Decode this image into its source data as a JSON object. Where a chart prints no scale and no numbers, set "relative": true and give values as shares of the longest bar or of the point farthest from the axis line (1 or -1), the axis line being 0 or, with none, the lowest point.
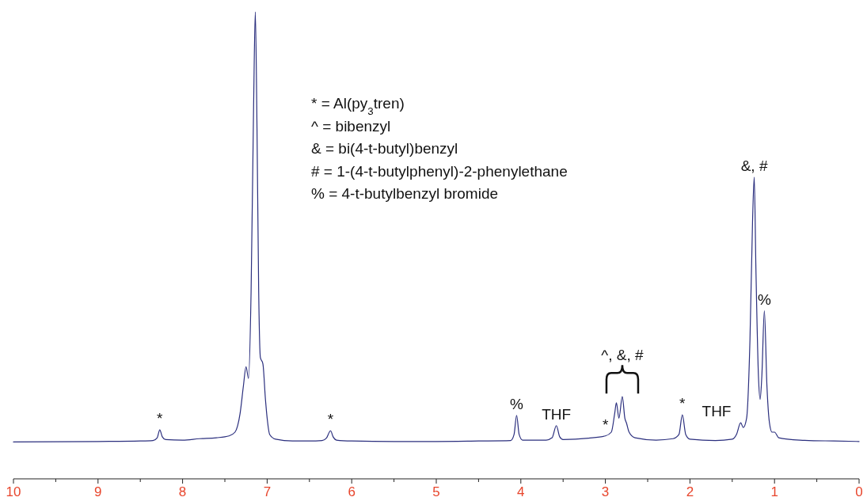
{
  "chart_data": {
    "type": "line",
    "relative": true,
    "xlim": [
      10,
      0
    ],
    "xticks": [
      10,
      {
        "value": 9.5,
        "label": null
      },
      9,
      {
        "value": 8.5,
        "label": null
      },
      8,
      {
        "value": 7.5,
        "label": null
      },
      7,
      {
        "value": 6.5,
        "label": null
      },
      6,
      {
        "value": 5.5,
        "label": null
      },
      5,
      {
        "value": 4.5,
        "label": null
      },
      4,
      {
        "value": 3.5,
        "label": null
      },
      3,
      {
        "value": 2.5,
        "label": null
      },
      2,
      {
        "value": 1.5,
        "label": null
      },
      1,
      {
        "value": 0.5,
        "label": null
      },
      0
    ],
    "x": [
      10,
      9,
      8.5,
      8.35,
      8.3,
      8.27,
      8.24,
      8.2,
      8.0,
      7.8,
      7.6,
      7.45,
      7.38,
      7.32,
      7.28,
      7.25,
      7.22,
      7.19,
      7.16,
      7.14,
      7.12,
      7.1,
      7.08,
      7.05,
      7.02,
      7.0,
      6.97,
      6.9,
      6.7,
      6.5,
      6.35,
      6.3,
      6.25,
      6.22,
      6.18,
      6.0,
      5.5,
      5.0,
      4.5,
      4.12,
      4.08,
      4.05,
      4.02,
      3.98,
      3.7,
      3.63,
      3.58,
      3.54,
      3.5,
      3.2,
      3.0,
      2.93,
      2.89,
      2.87,
      2.84,
      2.8,
      2.77,
      2.75,
      2.72,
      2.65,
      2.4,
      2.2,
      2.13,
      2.09,
      2.05,
      2.0,
      1.7,
      1.5,
      1.45,
      1.4,
      1.37,
      1.33,
      1.29,
      1.26,
      1.24,
      1.22,
      1.19,
      1.17,
      1.15,
      1.12,
      1.09,
      1.06,
      1.03,
      1.0,
      0.95,
      0.7,
      0.3,
      0
    ],
    "series": [
      {
        "color": "#2b2f7e",
        "values": [
          0.079,
          0.08,
          0.081,
          0.082,
          0.088,
          0.105,
          0.09,
          0.084,
          0.083,
          0.086,
          0.088,
          0.092,
          0.1,
          0.14,
          0.2,
          0.24,
          0.215,
          0.4,
          0.8,
          1.0,
          0.75,
          0.4,
          0.26,
          0.246,
          0.17,
          0.13,
          0.095,
          0.085,
          0.081,
          0.081,
          0.082,
          0.087,
          0.103,
          0.09,
          0.083,
          0.081,
          0.08,
          0.08,
          0.081,
          0.082,
          0.095,
          0.136,
          0.095,
          0.083,
          0.083,
          0.088,
          0.114,
          0.09,
          0.084,
          0.087,
          0.092,
          0.1,
          0.14,
          0.163,
          0.13,
          0.176,
          0.13,
          0.119,
          0.1,
          0.088,
          0.083,
          0.086,
          0.095,
          0.137,
          0.095,
          0.085,
          0.082,
          0.085,
          0.095,
          0.12,
          0.11,
          0.13,
          0.3,
          0.55,
          0.646,
          0.45,
          0.22,
          0.17,
          0.22,
          0.36,
          0.2,
          0.12,
          0.1,
          0.1,
          0.088,
          0.083,
          0.081,
          0.08
        ]
      }
    ],
    "annotations": [
      "* = Al(py$_{3}$tren)",
      "^ = bibenzyl",
      "& = bi(4-t-butyl)benzyl",
      "# = 1-(4-t-butylphenyl)-2-phenylethane",
      "% = 4-t-butylbenzyl bromide",
      {
        "text": "*",
        "x": 8.27,
        "y": 0.105
      },
      {
        "text": "*",
        "x": 6.25,
        "y": 0.103
      },
      {
        "text": "%",
        "x": 4.05,
        "y": 0.136
      },
      {
        "text": "THF",
        "x": 3.58,
        "y": 0.114
      },
      {
        "text": "*",
        "x": 3.0,
        "y": 0.092
      },
      {
        "text": "^, &, #",
        "x": 2.8,
        "y": 0.176
      },
      {
        "text": "*",
        "x": 2.09,
        "y": 0.137
      },
      {
        "text": "THF",
        "x": 1.4,
        "y": 0.12
      },
      {
        "text": "&, #",
        "x": 1.24,
        "y": 0.646
      },
      {
        "text": "%",
        "x": 1.12,
        "y": 0.36
      }
    ]
  }
}
